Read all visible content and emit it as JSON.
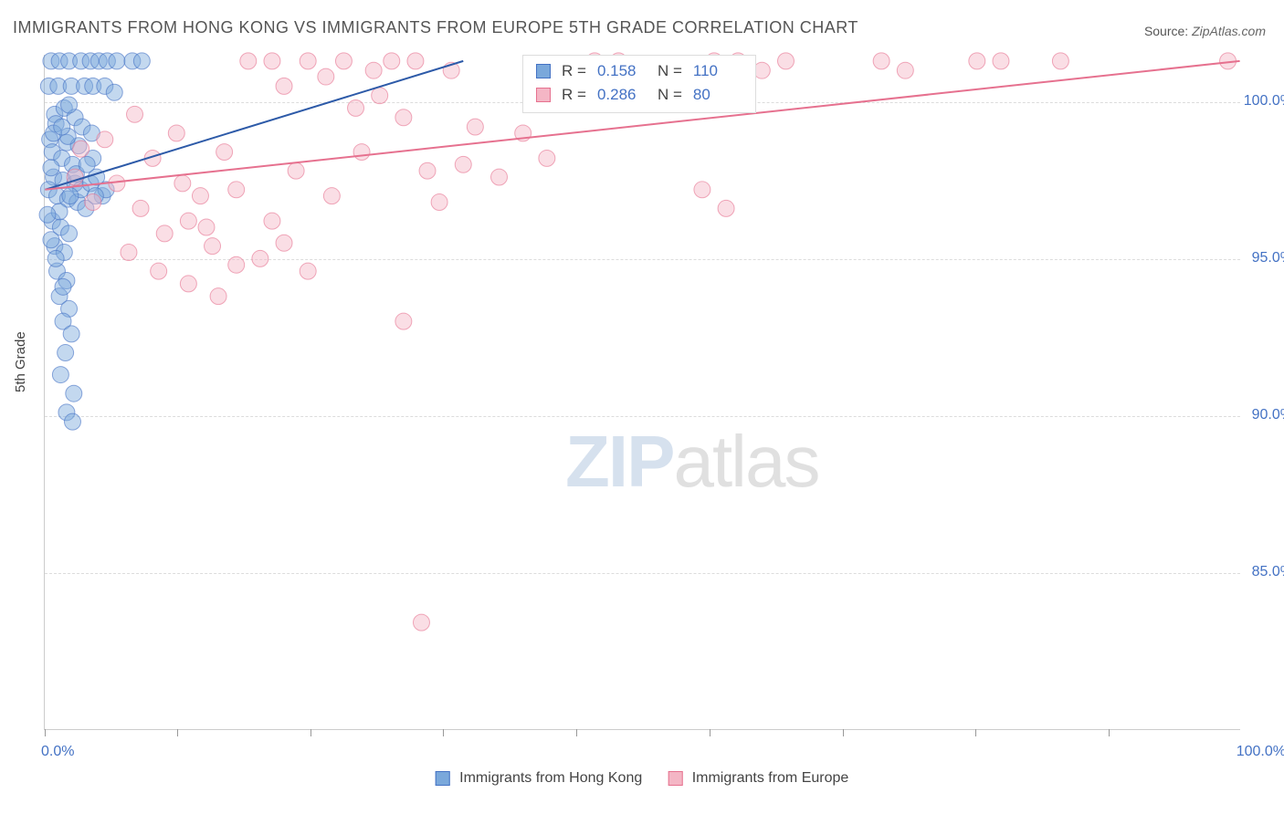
{
  "title": "IMMIGRANTS FROM HONG KONG VS IMMIGRANTS FROM EUROPE 5TH GRADE CORRELATION CHART",
  "source_label": "Source:",
  "source_value": "ZipAtlas.com",
  "watermark_a": "ZIP",
  "watermark_b": "atlas",
  "chart": {
    "type": "scatter",
    "ylabel": "5th Grade",
    "xlim": [
      0,
      100
    ],
    "ylim": [
      80,
      101.5
    ],
    "x_ticks": [
      0,
      11.1,
      22.2,
      33.3,
      44.4,
      55.6,
      66.7,
      77.8,
      88.9
    ],
    "y_gridlines": [
      85.0,
      90.0,
      95.0,
      100.0
    ],
    "y_tick_labels": [
      "85.0%",
      "90.0%",
      "95.0%",
      "100.0%"
    ],
    "x_min_label": "0.0%",
    "x_max_label": "100.0%",
    "background_color": "#ffffff",
    "grid_color": "#dcdcdc",
    "marker_radius": 9,
    "marker_opacity": 0.45,
    "line_width": 2,
    "series": [
      {
        "name": "Immigrants from Hong Kong",
        "color_fill": "#7aa8db",
        "color_stroke": "#4472c4",
        "line_color": "#2d5aa8",
        "R": "0.158",
        "N": "110",
        "trend": {
          "x1": 0,
          "y1": 97.2,
          "x2": 35,
          "y2": 101.3
        },
        "points": [
          [
            0.5,
            101.3
          ],
          [
            1.2,
            101.3
          ],
          [
            2.0,
            101.3
          ],
          [
            3.0,
            101.3
          ],
          [
            3.8,
            101.3
          ],
          [
            4.5,
            101.3
          ],
          [
            5.2,
            101.3
          ],
          [
            6.0,
            101.3
          ],
          [
            7.3,
            101.3
          ],
          [
            8.1,
            101.3
          ],
          [
            0.3,
            100.5
          ],
          [
            1.1,
            100.5
          ],
          [
            2.2,
            100.5
          ],
          [
            3.3,
            100.5
          ],
          [
            4.0,
            100.5
          ],
          [
            5.0,
            100.5
          ],
          [
            5.8,
            100.3
          ],
          [
            0.8,
            99.6
          ],
          [
            1.6,
            99.8
          ],
          [
            2.5,
            99.5
          ],
          [
            3.1,
            99.2
          ],
          [
            3.9,
            99.0
          ],
          [
            0.4,
            98.8
          ],
          [
            1.8,
            98.7
          ],
          [
            2.8,
            98.6
          ],
          [
            0.6,
            98.4
          ],
          [
            1.4,
            98.2
          ],
          [
            2.3,
            98.0
          ],
          [
            0.7,
            97.6
          ],
          [
            1.5,
            97.5
          ],
          [
            2.5,
            97.4
          ],
          [
            0.3,
            97.2
          ],
          [
            1.0,
            97.0
          ],
          [
            1.9,
            96.9
          ],
          [
            2.7,
            96.8
          ],
          [
            3.4,
            96.6
          ],
          [
            0.6,
            96.2
          ],
          [
            1.3,
            96.0
          ],
          [
            2.0,
            95.8
          ],
          [
            0.8,
            95.4
          ],
          [
            1.6,
            95.2
          ],
          [
            1.0,
            94.6
          ],
          [
            1.8,
            94.3
          ],
          [
            1.2,
            93.8
          ],
          [
            2.0,
            93.4
          ],
          [
            1.5,
            93.0
          ],
          [
            2.2,
            92.6
          ],
          [
            1.7,
            92.0
          ],
          [
            1.3,
            91.3
          ],
          [
            2.4,
            90.7
          ],
          [
            1.8,
            90.1
          ],
          [
            2.3,
            89.8
          ],
          [
            0.5,
            97.9
          ],
          [
            1.9,
            98.9
          ],
          [
            0.9,
            99.3
          ],
          [
            3.0,
            97.2
          ],
          [
            2.1,
            97.0
          ],
          [
            1.2,
            96.5
          ],
          [
            3.8,
            97.4
          ],
          [
            4.3,
            97.6
          ],
          [
            4.0,
            98.2
          ],
          [
            4.8,
            97.0
          ],
          [
            5.1,
            97.2
          ],
          [
            2.6,
            97.7
          ],
          [
            0.2,
            96.4
          ],
          [
            0.5,
            95.6
          ],
          [
            0.9,
            95.0
          ],
          [
            1.5,
            94.1
          ],
          [
            0.7,
            99.0
          ],
          [
            2.0,
            99.9
          ],
          [
            1.4,
            99.2
          ],
          [
            3.5,
            98.0
          ],
          [
            4.2,
            97.0
          ]
        ]
      },
      {
        "name": "Immigrants from Europe",
        "color_fill": "#f4b6c5",
        "color_stroke": "#e6718f",
        "line_color": "#e6718f",
        "R": "0.286",
        "N": "80",
        "trend": {
          "x1": 0,
          "y1": 97.2,
          "x2": 100,
          "y2": 101.3
        },
        "points": [
          [
            3.0,
            98.5
          ],
          [
            5.0,
            98.8
          ],
          [
            7.5,
            99.6
          ],
          [
            9.0,
            98.2
          ],
          [
            11.0,
            99.0
          ],
          [
            13.0,
            97.0
          ],
          [
            15.0,
            98.4
          ],
          [
            17.0,
            101.3
          ],
          [
            19.0,
            101.3
          ],
          [
            20.0,
            100.5
          ],
          [
            22.0,
            101.3
          ],
          [
            23.5,
            100.8
          ],
          [
            25.0,
            101.3
          ],
          [
            26.0,
            99.8
          ],
          [
            27.5,
            101.0
          ],
          [
            28.0,
            100.2
          ],
          [
            29.0,
            101.3
          ],
          [
            30.0,
            99.5
          ],
          [
            31.0,
            101.3
          ],
          [
            32.0,
            97.8
          ],
          [
            33.0,
            96.8
          ],
          [
            34.0,
            101.0
          ],
          [
            35.0,
            98.0
          ],
          [
            36.0,
            99.2
          ],
          [
            8.0,
            96.6
          ],
          [
            10.0,
            95.8
          ],
          [
            12.0,
            96.2
          ],
          [
            14.0,
            95.4
          ],
          [
            16.0,
            94.8
          ],
          [
            18.0,
            95.0
          ],
          [
            6.0,
            97.4
          ],
          [
            4.0,
            96.8
          ],
          [
            2.5,
            97.6
          ],
          [
            20.0,
            95.5
          ],
          [
            22.0,
            94.6
          ],
          [
            19.0,
            96.2
          ],
          [
            12.0,
            94.2
          ],
          [
            14.5,
            93.8
          ],
          [
            30.0,
            93.0
          ],
          [
            31.5,
            83.4
          ],
          [
            38.0,
            97.6
          ],
          [
            40.0,
            99.0
          ],
          [
            42.0,
            98.2
          ],
          [
            46.0,
            101.3
          ],
          [
            47.0,
            100.8
          ],
          [
            48.0,
            101.3
          ],
          [
            50.0,
            100.0
          ],
          [
            55.0,
            97.2
          ],
          [
            56.0,
            101.3
          ],
          [
            57.0,
            96.6
          ],
          [
            58.0,
            101.3
          ],
          [
            60.0,
            101.0
          ],
          [
            62.0,
            101.3
          ],
          [
            70.0,
            101.3
          ],
          [
            72.0,
            101.0
          ],
          [
            78.0,
            101.3
          ],
          [
            80.0,
            101.3
          ],
          [
            85.0,
            101.3
          ],
          [
            99.0,
            101.3
          ],
          [
            7.0,
            95.2
          ],
          [
            9.5,
            94.6
          ],
          [
            11.5,
            97.4
          ],
          [
            13.5,
            96.0
          ],
          [
            16.0,
            97.2
          ],
          [
            21.0,
            97.8
          ],
          [
            24.0,
            97.0
          ],
          [
            26.5,
            98.4
          ]
        ]
      }
    ]
  },
  "legend_bottom": {
    "series1_label": "Immigrants from Hong Kong",
    "series2_label": "Immigrants from Europe"
  },
  "stats_box": {
    "r_label": "R =",
    "n_label": "N ="
  }
}
